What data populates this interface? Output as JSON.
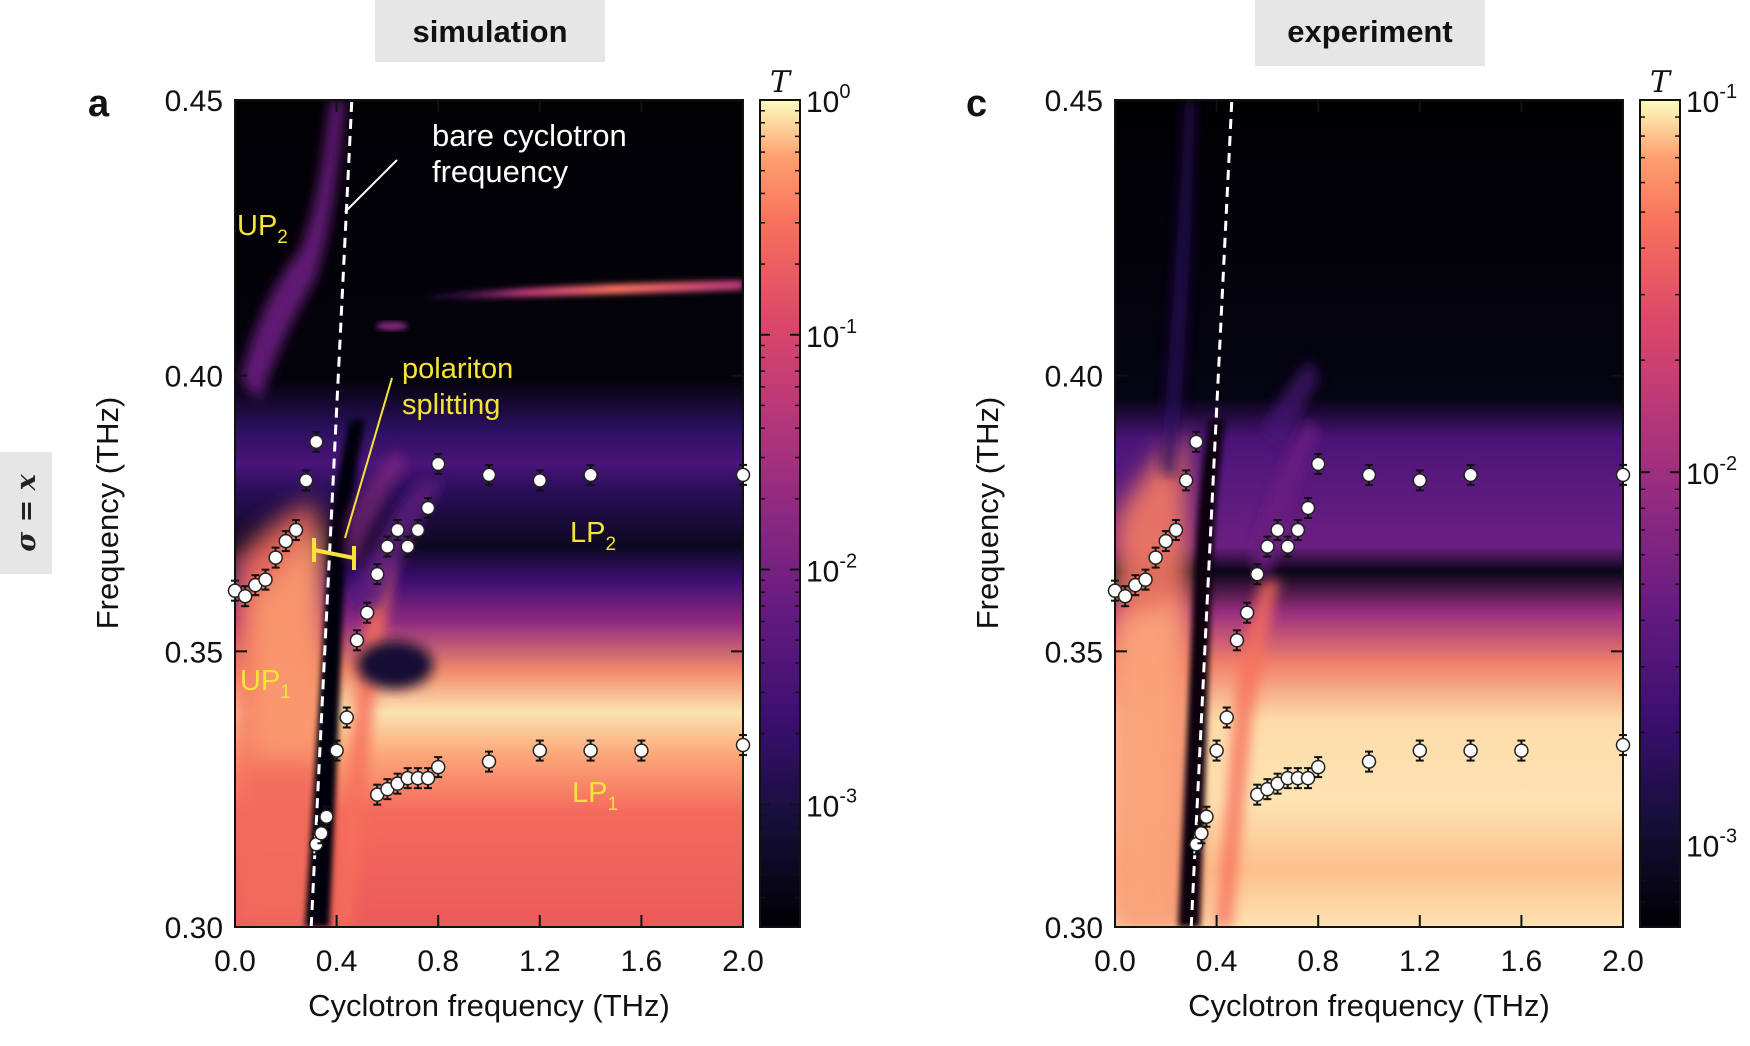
{
  "figure": {
    "side_label": "σ = x",
    "colorbar_title": "T"
  },
  "chart_data": [
    {
      "type": "heatmap",
      "panel_label": "a",
      "title": "simulation",
      "xlabel": "Cyclotron frequency (THz)",
      "ylabel": "Frequency (THz)",
      "xlim": [
        0.0,
        2.0
      ],
      "ylim": [
        0.3,
        0.45
      ],
      "xticks": [
        "0.0",
        "0.4",
        "0.8",
        "1.2",
        "1.6",
        "2.0"
      ],
      "yticks": [
        "0.30",
        "0.35",
        "0.40",
        "0.45"
      ],
      "colorbar": {
        "scale": "log",
        "ticks": [
          {
            "base": "10",
            "exp": "0",
            "value": 1
          },
          {
            "base": "10",
            "exp": "-1",
            "value": 0.1
          },
          {
            "base": "10",
            "exp": "-2",
            "value": 0.01
          },
          {
            "base": "10",
            "exp": "-3",
            "value": 0.001
          }
        ],
        "range": [
          0.0003,
          1
        ]
      },
      "bare_cyclotron_line": {
        "x": [
          0.3,
          0.46
        ],
        "y": [
          0.3,
          0.45
        ]
      },
      "annotations": {
        "bare_line1": "bare cyclotron",
        "bare_line2": "frequency",
        "polariton_line1": "polariton",
        "polariton_line2": "splitting",
        "up2": {
          "main": "UP",
          "sub": "2"
        },
        "up1": {
          "main": "UP",
          "sub": "1"
        },
        "lp2": {
          "main": "LP",
          "sub": "2"
        },
        "lp1": {
          "main": "LP",
          "sub": "1"
        }
      },
      "series": [
        {
          "name": "upper branch data",
          "x": [
            0.0,
            0.04,
            0.08,
            0.12,
            0.16,
            0.2,
            0.24,
            0.28,
            0.32,
            0.56,
            0.6,
            0.64,
            0.68,
            0.72,
            0.76,
            0.8,
            1.0,
            1.2,
            1.4,
            2.0
          ],
          "y": [
            0.361,
            0.36,
            0.362,
            0.363,
            0.367,
            0.37,
            0.372,
            0.381,
            0.388,
            0.364,
            0.369,
            0.372,
            0.369,
            0.372,
            0.376,
            0.384,
            0.382,
            0.381,
            0.382,
            0.382
          ]
        },
        {
          "name": "lower branch data",
          "x": [
            0.32,
            0.34,
            0.36,
            0.4,
            0.44,
            0.48,
            0.52,
            0.56,
            0.6,
            0.64,
            0.68,
            0.72,
            0.76,
            0.8,
            1.0,
            1.2,
            1.4,
            1.6,
            2.0
          ],
          "y": [
            0.315,
            0.317,
            0.32,
            0.332,
            0.338,
            0.352,
            0.357,
            0.324,
            0.325,
            0.326,
            0.327,
            0.327,
            0.327,
            0.329,
            0.33,
            0.332,
            0.332,
            0.332,
            0.333
          ]
        }
      ]
    },
    {
      "type": "heatmap",
      "panel_label": "c",
      "title": "experiment",
      "xlabel": "Cyclotron frequency (THz)",
      "ylabel": "Frequency (THz)",
      "xlim": [
        0.0,
        2.0
      ],
      "ylim": [
        0.3,
        0.45
      ],
      "xticks": [
        "0.0",
        "0.4",
        "0.8",
        "1.2",
        "1.6",
        "2.0"
      ],
      "yticks": [
        "0.30",
        "0.35",
        "0.40",
        "0.45"
      ],
      "colorbar": {
        "scale": "log",
        "ticks": [
          {
            "base": "10",
            "exp": "-1",
            "value": 0.1
          },
          {
            "base": "10",
            "exp": "-2",
            "value": 0.01
          },
          {
            "base": "10",
            "exp": "-3",
            "value": 0.001
          }
        ],
        "range": [
          0.0006,
          0.1
        ]
      },
      "bare_cyclotron_line": {
        "x": [
          0.3,
          0.46
        ],
        "y": [
          0.3,
          0.45
        ]
      },
      "series": [
        {
          "name": "upper branch data",
          "x": [
            0.0,
            0.04,
            0.08,
            0.12,
            0.16,
            0.2,
            0.24,
            0.28,
            0.32,
            0.56,
            0.6,
            0.64,
            0.68,
            0.72,
            0.76,
            0.8,
            1.0,
            1.2,
            1.4,
            2.0
          ],
          "y": [
            0.361,
            0.36,
            0.362,
            0.363,
            0.367,
            0.37,
            0.372,
            0.381,
            0.388,
            0.364,
            0.369,
            0.372,
            0.369,
            0.372,
            0.376,
            0.384,
            0.382,
            0.381,
            0.382,
            0.382
          ]
        },
        {
          "name": "lower branch data",
          "x": [
            0.32,
            0.34,
            0.36,
            0.4,
            0.44,
            0.48,
            0.52,
            0.56,
            0.6,
            0.64,
            0.68,
            0.72,
            0.76,
            0.8,
            1.0,
            1.2,
            1.4,
            1.6,
            2.0
          ],
          "y": [
            0.315,
            0.317,
            0.32,
            0.332,
            0.338,
            0.352,
            0.357,
            0.324,
            0.325,
            0.326,
            0.327,
            0.327,
            0.327,
            0.329,
            0.33,
            0.332,
            0.332,
            0.332,
            0.333
          ]
        }
      ]
    }
  ]
}
